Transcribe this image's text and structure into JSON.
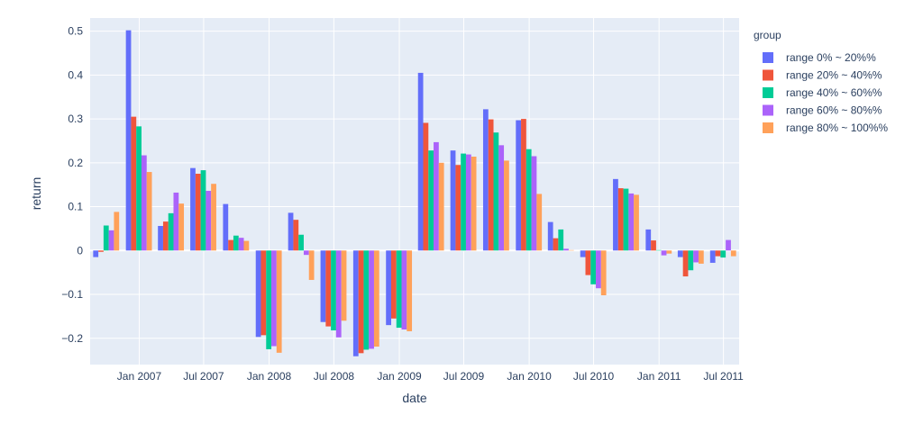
{
  "chart_data": {
    "type": "bar",
    "xlabel": "date",
    "ylabel": "return",
    "ylim": [
      -0.26,
      0.53
    ],
    "y_ticks": [
      "0.5",
      "0.4",
      "0.3",
      "0.2",
      "0.1",
      "0",
      "−0.1",
      "−0.2"
    ],
    "x_ticks": [
      "Jan 2007",
      "Jul 2007",
      "Jan 2008",
      "Jul 2008",
      "Jan 2009",
      "Jul 2009",
      "Jan 2010",
      "Jul 2010",
      "Jan 2011",
      "Jul 2011"
    ],
    "categories": [
      "2006-09-30",
      "2006-12-31",
      "2007-03-31",
      "2007-06-30",
      "2007-09-30",
      "2007-12-31",
      "2008-03-31",
      "2008-06-30",
      "2008-09-30",
      "2008-12-31",
      "2009-03-31",
      "2009-06-30",
      "2009-09-30",
      "2009-12-31",
      "2010-03-31",
      "2010-06-30",
      "2010-09-30",
      "2010-12-31",
      "2011-03-31",
      "2011-06-30"
    ],
    "legend_title": "group",
    "legend_position": "top-right",
    "grid": true,
    "series": [
      {
        "name": "range 0% ~ 20%%",
        "color": "#636efa",
        "values": [
          -0.015,
          0.502,
          0.056,
          0.188,
          0.106,
          -0.197,
          0.086,
          -0.163,
          -0.241,
          -0.17,
          0.405,
          0.228,
          0.322,
          0.297,
          0.065,
          -0.015,
          0.163,
          0.048,
          -0.015,
          -0.028
        ]
      },
      {
        "name": "range 20% ~ 40%%",
        "color": "#ef553b",
        "values": [
          -0.003,
          0.305,
          0.066,
          0.175,
          0.024,
          -0.193,
          0.07,
          -0.173,
          -0.234,
          -0.155,
          0.291,
          0.195,
          0.299,
          0.3,
          0.028,
          -0.056,
          0.142,
          0.023,
          -0.059,
          -0.013
        ]
      },
      {
        "name": "range 40% ~ 60%%",
        "color": "#00cc96",
        "values": [
          0.057,
          0.283,
          0.085,
          0.183,
          0.034,
          -0.225,
          0.036,
          -0.182,
          -0.226,
          -0.176,
          0.228,
          0.221,
          0.269,
          0.231,
          0.048,
          -0.077,
          0.141,
          0.001,
          -0.045,
          -0.016
        ]
      },
      {
        "name": "range 60% ~ 80%%",
        "color": "#ab63fa",
        "values": [
          0.046,
          0.217,
          0.132,
          0.136,
          0.029,
          -0.218,
          -0.01,
          -0.198,
          -0.224,
          -0.18,
          0.247,
          0.219,
          0.24,
          0.215,
          0.004,
          -0.086,
          0.13,
          -0.011,
          -0.027,
          0.024
        ]
      },
      {
        "name": "range 80% ~ 100%%",
        "color": "#ffa15a",
        "values": [
          0.088,
          0.179,
          0.107,
          0.152,
          0.022,
          -0.233,
          -0.067,
          -0.16,
          -0.219,
          -0.184,
          0.2,
          0.214,
          0.205,
          0.129,
          0.001,
          -0.102,
          0.127,
          -0.007,
          -0.03,
          -0.013
        ]
      }
    ]
  }
}
